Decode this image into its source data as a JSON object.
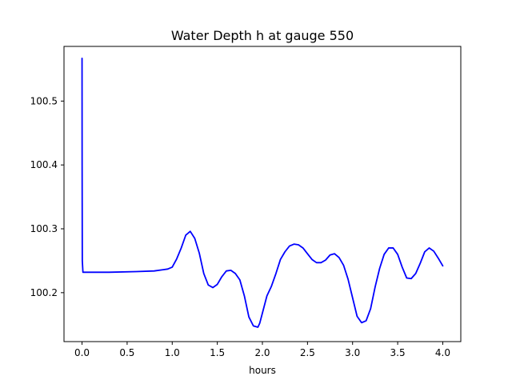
{
  "chart_data": {
    "type": "line",
    "title": "Water Depth h at gauge 550",
    "xlabel": "hours",
    "ylabel": "",
    "xlim": [
      -0.2,
      4.2
    ],
    "ylim": [
      100.1234,
      100.5856
    ],
    "grid": false,
    "x_ticks": [
      0.0,
      0.5,
      1.0,
      1.5,
      2.0,
      2.5,
      3.0,
      3.5,
      4.0
    ],
    "x_tick_labels": [
      "0.0",
      "0.5",
      "1.0",
      "1.5",
      "2.0",
      "2.5",
      "3.0",
      "3.5",
      "4.0"
    ],
    "y_ticks": [
      100.2,
      100.3,
      100.4,
      100.5
    ],
    "y_tick_labels": [
      "100.2",
      "100.3",
      "100.4",
      "100.5"
    ],
    "series": [
      {
        "color": "#0000ff",
        "x": [
          0.0,
          0.001,
          0.003,
          0.01,
          0.3,
          0.6,
          0.8,
          0.9,
          0.95,
          1.0,
          1.05,
          1.1,
          1.15,
          1.2,
          1.25,
          1.3,
          1.35,
          1.4,
          1.45,
          1.5,
          1.55,
          1.6,
          1.65,
          1.7,
          1.75,
          1.8,
          1.85,
          1.9,
          1.95,
          1.97,
          2.0,
          2.05,
          2.1,
          2.15,
          2.2,
          2.25,
          2.3,
          2.35,
          2.4,
          2.45,
          2.5,
          2.55,
          2.6,
          2.65,
          2.7,
          2.75,
          2.8,
          2.85,
          2.9,
          2.95,
          3.0,
          3.05,
          3.1,
          3.15,
          3.2,
          3.25,
          3.3,
          3.35,
          3.4,
          3.45,
          3.5,
          3.55,
          3.6,
          3.65,
          3.7,
          3.75,
          3.8,
          3.85,
          3.9,
          3.95,
          4.0
        ],
        "y": [
          100.567,
          100.4,
          100.25,
          100.232,
          100.232,
          100.233,
          100.234,
          100.236,
          100.237,
          100.24,
          100.253,
          100.27,
          100.29,
          100.296,
          100.285,
          100.262,
          100.23,
          100.212,
          100.208,
          100.213,
          100.225,
          100.234,
          100.235,
          100.23,
          100.22,
          100.195,
          100.162,
          100.148,
          100.146,
          100.152,
          100.168,
          100.195,
          100.21,
          100.23,
          100.252,
          100.264,
          100.273,
          100.276,
          100.275,
          100.27,
          100.261,
          100.252,
          100.247,
          100.247,
          100.251,
          100.259,
          100.261,
          100.255,
          100.243,
          100.221,
          100.192,
          100.163,
          100.153,
          100.156,
          100.175,
          100.209,
          100.238,
          100.26,
          100.27,
          100.27,
          100.26,
          100.24,
          100.223,
          100.222,
          100.23,
          100.246,
          100.264,
          100.27,
          100.265,
          100.254,
          100.242
        ]
      }
    ]
  }
}
